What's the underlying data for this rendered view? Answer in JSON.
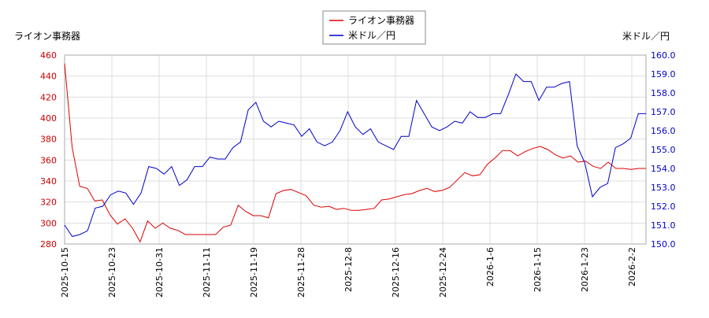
{
  "chart_data": {
    "type": "line",
    "left_axis_label": "ライオン事務器",
    "right_axis_label": "米ドル／円",
    "legend_position": "top-center",
    "grid": true,
    "left_ylim": [
      280,
      460
    ],
    "right_ylim": [
      150.0,
      160.0
    ],
    "left_ticks": [
      "280",
      "300",
      "320",
      "340",
      "360",
      "380",
      "400",
      "420",
      "440",
      "460"
    ],
    "right_ticks": [
      "150.0",
      "151.0",
      "152.0",
      "153.0",
      "154.0",
      "155.0",
      "156.0",
      "157.0",
      "158.0",
      "159.0",
      "160.0"
    ],
    "x_ticks": [
      "2025-10-15",
      "2025-10-23",
      "2025-10-31",
      "2025-11-11",
      "2025-11-19",
      "2025-11-28",
      "2025-12-8",
      "2025-12-16",
      "2025-12-24",
      "2026-1-6",
      "2026-1-15",
      "2026-1-23",
      "2026-2-2"
    ],
    "series": [
      {
        "name": "ライオン事務器",
        "axis": "left",
        "color": "#dd0000",
        "values": [
          452,
          372,
          335,
          333,
          321,
          322,
          308,
          299,
          304,
          295,
          282,
          302,
          295,
          300,
          295,
          293,
          289,
          289,
          289,
          289,
          289,
          296,
          298,
          317,
          311,
          307,
          307,
          305,
          328,
          331,
          332,
          329,
          326,
          317,
          315,
          316,
          313,
          314,
          312,
          312,
          313,
          314,
          322,
          323,
          325,
          327,
          328,
          331,
          333,
          330,
          331,
          334,
          341,
          348,
          345,
          346,
          356,
          362,
          369,
          369,
          364,
          368,
          371,
          373,
          370,
          365,
          362,
          364,
          358,
          359,
          354,
          352,
          358,
          352,
          352,
          351,
          352,
          352
        ]
      },
      {
        "name": "米ドル／円",
        "axis": "right",
        "color": "#0000cc",
        "values": [
          151.0,
          150.4,
          150.5,
          150.7,
          151.9,
          152.0,
          152.6,
          152.8,
          152.7,
          152.1,
          152.7,
          154.1,
          154.0,
          153.7,
          154.1,
          153.1,
          153.4,
          154.1,
          154.1,
          154.6,
          154.5,
          154.5,
          155.1,
          155.4,
          157.1,
          157.5,
          156.5,
          156.2,
          156.5,
          156.4,
          156.3,
          155.7,
          156.1,
          155.4,
          155.2,
          155.4,
          156.0,
          157.0,
          156.2,
          155.8,
          156.1,
          155.4,
          155.2,
          155.0,
          155.7,
          155.7,
          157.6,
          156.9,
          156.2,
          156.0,
          156.2,
          156.5,
          156.4,
          157.0,
          156.7,
          156.7,
          156.9,
          156.9,
          157.9,
          159.0,
          158.6,
          158.6,
          157.6,
          158.3,
          158.3,
          158.5,
          158.6,
          155.2,
          154.3,
          152.5,
          153.0,
          153.2,
          155.1,
          155.3,
          155.6,
          156.9,
          156.9
        ]
      }
    ]
  }
}
